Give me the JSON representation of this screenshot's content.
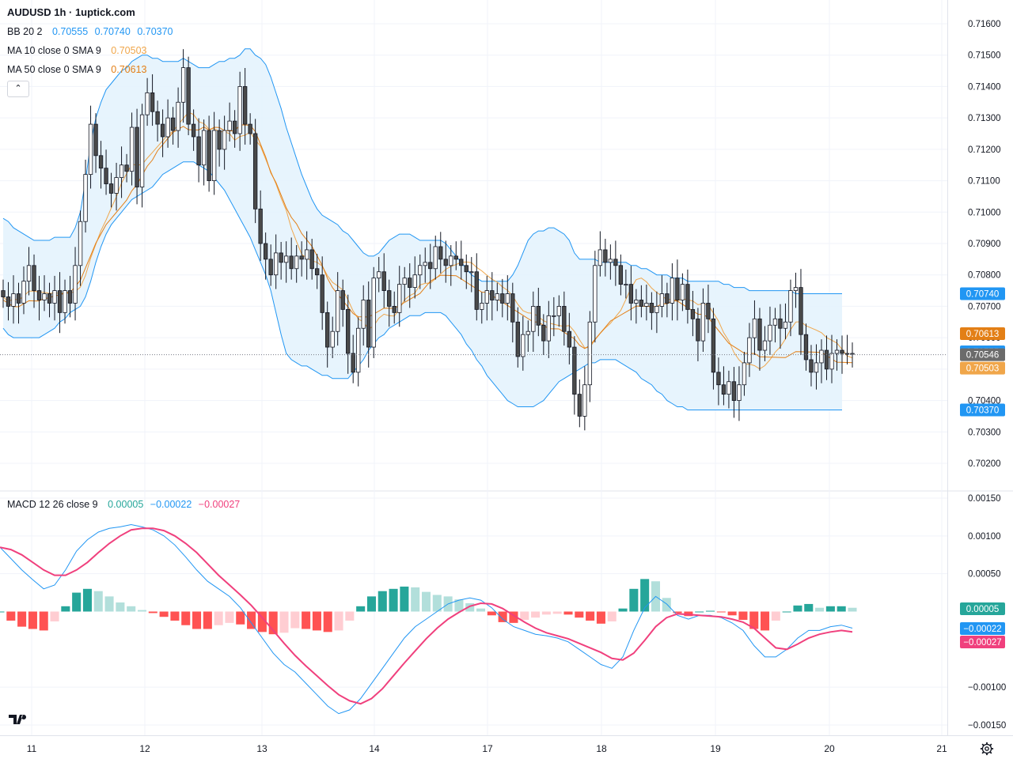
{
  "header": {
    "symbol_title": "AUDUSD 1h · 1uptick.com",
    "collapse_icon": "chevron-up-icon"
  },
  "legend": {
    "bb": {
      "label": "BB 20 2",
      "values": [
        "0.70555",
        "0.70740",
        "0.70370"
      ]
    },
    "ma10": {
      "label": "MA 10 close 0 SMA 9",
      "value": "0.70503",
      "color": "#f0a64a"
    },
    "ma50": {
      "label": "MA 50 close 0 SMA 9",
      "value": "0.70613",
      "color": "#e37f16"
    },
    "macd": {
      "label": "MACD 12 26 close 9",
      "values": [
        "0.00005",
        "−0.00022",
        "−0.00027"
      ]
    }
  },
  "colors": {
    "bull": "#ffffff",
    "bear": "#4a4a4a",
    "wick": "#131722",
    "bb_line": "#2196f3",
    "bb_fill": "#e3f2fd",
    "macd_line": "#2196f3",
    "signal_line": "#f0407d",
    "hist_pos_strong": "#26a69a",
    "hist_pos_weak": "#b2dfdb",
    "hist_neg_strong": "#ff5252",
    "hist_neg_weak": "#ffcdd2"
  },
  "chart_data": [
    {
      "type": "candlestick",
      "title": "AUDUSD 1h",
      "y_ticks": [
        "0.71600",
        "0.71500",
        "0.71400",
        "0.71300",
        "0.71200",
        "0.71100",
        "0.71000",
        "0.70900",
        "0.70800",
        "0.70700",
        "0.70600",
        "0.70500",
        "0.70400",
        "0.70300",
        "0.70200"
      ],
      "ylim": [
        0.7014,
        0.716
      ],
      "x_labels": [
        "11",
        "12",
        "13",
        "14",
        "17",
        "18",
        "19",
        "20",
        "21"
      ],
      "last_price": "0.70546",
      "price_badges": [
        {
          "value": "0.70740",
          "price": 0.7074,
          "color": "#2196f3"
        },
        {
          "value": "0.70613",
          "price": 0.70613,
          "color": "#e37f16"
        },
        {
          "value": "0.70555",
          "price": 0.70555,
          "color": "#2196f3"
        },
        {
          "value": "0.70546",
          "price": 0.70546,
          "color": "#6b6b6b"
        },
        {
          "value": "0.70503",
          "price": 0.70503,
          "color": "#f0a64a"
        },
        {
          "value": "0.70370",
          "price": 0.7037,
          "color": "#2196f3"
        }
      ],
      "closes": [
        0.7073,
        0.707,
        0.7074,
        0.7071,
        0.7078,
        0.7083,
        0.7075,
        0.7072,
        0.7074,
        0.7071,
        0.7075,
        0.7068,
        0.7075,
        0.7071,
        0.7083,
        0.7097,
        0.7112,
        0.7128,
        0.7118,
        0.7114,
        0.7109,
        0.7106,
        0.7111,
        0.7115,
        0.7113,
        0.7127,
        0.7108,
        0.7131,
        0.7138,
        0.7132,
        0.7128,
        0.7124,
        0.713,
        0.7126,
        0.7135,
        0.7146,
        0.7128,
        0.7124,
        0.7115,
        0.7126,
        0.711,
        0.7126,
        0.712,
        0.7126,
        0.7129,
        0.7125,
        0.714,
        0.7128,
        0.7125,
        0.7101,
        0.709,
        0.7085,
        0.708,
        0.7087,
        0.7084,
        0.7086,
        0.7082,
        0.7086,
        0.7085,
        0.7088,
        0.7082,
        0.708,
        0.7068,
        0.7057,
        0.7062,
        0.7075,
        0.7069,
        0.7055,
        0.7049,
        0.7063,
        0.7072,
        0.7057,
        0.7079,
        0.7081,
        0.7075,
        0.707,
        0.7068,
        0.7077,
        0.7079,
        0.7076,
        0.708,
        0.7083,
        0.7084,
        0.7082,
        0.7089,
        0.7085,
        0.7083,
        0.7086,
        0.7085,
        0.7083,
        0.7081,
        0.7081,
        0.7069,
        0.7071,
        0.7075,
        0.7072,
        0.7074,
        0.7071,
        0.7074,
        0.7065,
        0.7054,
        0.7061,
        0.7062,
        0.707,
        0.7064,
        0.7059,
        0.7067,
        0.7067,
        0.707,
        0.7062,
        0.7057,
        0.7042,
        0.7035,
        0.7045,
        0.7065,
        0.7083,
        0.7088,
        0.7084,
        0.7085,
        0.7083,
        0.7077,
        0.7077,
        0.7071,
        0.7072,
        0.707,
        0.7071,
        0.7068,
        0.707,
        0.7074,
        0.7071,
        0.7079,
        0.7072,
        0.7077,
        0.7069,
        0.7066,
        0.7059,
        0.7071,
        0.7066,
        0.7049,
        0.7045,
        0.7042,
        0.7046,
        0.704,
        0.7045,
        0.7052,
        0.706,
        0.7066,
        0.7056,
        0.7059,
        0.7064,
        0.7066,
        0.7063,
        0.7065,
        0.7075,
        0.7076,
        0.7061,
        0.7053,
        0.7049,
        0.7052,
        0.7056,
        0.705,
        0.7055,
        0.7056,
        0.7055,
        0.7055,
        0.7055
      ],
      "bb_basis": [
        0.7068,
        0.7067,
        0.7066,
        0.7066,
        0.7067,
        0.7068,
        0.7068,
        0.7068,
        0.7069,
        0.7069,
        0.707,
        0.707,
        0.7071,
        0.7071,
        0.7073,
        0.7075,
        0.7079,
        0.7083,
        0.7087,
        0.709,
        0.7093,
        0.7095,
        0.7097,
        0.7099,
        0.7101,
        0.7104,
        0.7106,
        0.7109,
        0.7112,
        0.7114,
        0.7117,
        0.7119,
        0.7121,
        0.7123,
        0.7124,
        0.7125,
        0.7124,
        0.7124,
        0.7124,
        0.7125,
        0.7124,
        0.7125,
        0.7125,
        0.7124,
        0.7124,
        0.7124,
        0.7126,
        0.7126,
        0.7126,
        0.7124,
        0.712,
        0.7116,
        0.7111,
        0.7108,
        0.7104,
        0.71,
        0.7097,
        0.7095,
        0.7092,
        0.709,
        0.7088,
        0.7085,
        0.7082,
        0.7078,
        0.7075,
        0.7073,
        0.7071,
        0.7069,
        0.7067,
        0.7066,
        0.7066,
        0.7066,
        0.7067,
        0.7068,
        0.7069,
        0.7069,
        0.7069,
        0.707,
        0.7071,
        0.7072,
        0.7073,
        0.7074,
        0.7076,
        0.7078,
        0.7079,
        0.708,
        0.708,
        0.708,
        0.708,
        0.7079,
        0.7078,
        0.7077,
        0.7076,
        0.7075,
        0.7075,
        0.7074,
        0.7073,
        0.7072,
        0.7071,
        0.707,
        0.7069,
        0.7068,
        0.7067,
        0.7066,
        0.7066,
        0.7065,
        0.7064,
        0.7064,
        0.7064,
        0.7063,
        0.7062,
        0.7061,
        0.7059,
        0.7058,
        0.7059,
        0.7061,
        0.7063,
        0.7065,
        0.7067,
        0.7068,
        0.7069,
        0.707,
        0.7071,
        0.7072,
        0.7072,
        0.7072,
        0.7072,
        0.7072,
        0.7073,
        0.7073,
        0.7074,
        0.7074,
        0.7073,
        0.7072,
        0.7071,
        0.707,
        0.707,
        0.7069,
        0.7067,
        0.7065,
        0.7063,
        0.7061,
        0.706,
        0.7059,
        0.7058,
        0.7058,
        0.7058,
        0.7057,
        0.7057,
        0.7057,
        0.7057,
        0.7057,
        0.7057,
        0.7058,
        0.7059,
        0.7059,
        0.7059,
        0.7059,
        0.7059,
        0.7059,
        0.7058,
        0.7057,
        0.7056,
        0.7056,
        0.7056,
        0.7056
      ],
      "bb_upper": [
        0.7098,
        0.7097,
        0.7095,
        0.7094,
        0.7093,
        0.7092,
        0.7091,
        0.7091,
        0.7091,
        0.7091,
        0.7092,
        0.7092,
        0.7092,
        0.7092,
        0.7095,
        0.71,
        0.711,
        0.7122,
        0.713,
        0.7135,
        0.7139,
        0.7141,
        0.7143,
        0.7145,
        0.7146,
        0.7148,
        0.7149,
        0.715,
        0.715,
        0.7149,
        0.7149,
        0.7148,
        0.7148,
        0.7148,
        0.7148,
        0.7149,
        0.7148,
        0.7147,
        0.7146,
        0.7146,
        0.7146,
        0.7147,
        0.7148,
        0.7148,
        0.7149,
        0.7149,
        0.715,
        0.7152,
        0.7152,
        0.715,
        0.7149,
        0.7147,
        0.7143,
        0.7138,
        0.7133,
        0.7127,
        0.7122,
        0.7117,
        0.7112,
        0.7108,
        0.7104,
        0.7101,
        0.7099,
        0.7098,
        0.7097,
        0.7096,
        0.7094,
        0.7093,
        0.7091,
        0.7089,
        0.7087,
        0.7086,
        0.7086,
        0.7087,
        0.7089,
        0.7091,
        0.7092,
        0.7093,
        0.7093,
        0.7093,
        0.7092,
        0.7091,
        0.7091,
        0.7091,
        0.7091,
        0.7091,
        0.709,
        0.7088,
        0.7086,
        0.7084,
        0.7082,
        0.708,
        0.7079,
        0.7078,
        0.7078,
        0.7078,
        0.7078,
        0.7078,
        0.7078,
        0.708,
        0.7083,
        0.7087,
        0.7091,
        0.7093,
        0.7094,
        0.7094,
        0.7095,
        0.7095,
        0.7094,
        0.7093,
        0.7091,
        0.7087,
        0.7085,
        0.7085,
        0.7085,
        0.7085,
        0.7084,
        0.7084,
        0.7084,
        0.7084,
        0.7084,
        0.7084,
        0.7083,
        0.7083,
        0.7082,
        0.7082,
        0.7081,
        0.708,
        0.708,
        0.708,
        0.7079,
        0.7079,
        0.7079,
        0.7078,
        0.7078,
        0.7078,
        0.7078,
        0.7078,
        0.7078,
        0.7078,
        0.7077,
        0.7077,
        0.7076,
        0.7076,
        0.7076,
        0.7075,
        0.7075,
        0.7075,
        0.7075,
        0.7075,
        0.7075,
        0.7075,
        0.7075,
        0.7075,
        0.7074,
        0.7074,
        0.7074,
        0.7074,
        0.7074,
        0.7074,
        0.7074,
        0.7074,
        0.7074,
        0.7074
      ],
      "bb_lower": [
        0.7063,
        0.7061,
        0.706,
        0.706,
        0.706,
        0.706,
        0.706,
        0.706,
        0.7061,
        0.7062,
        0.7063,
        0.7065,
        0.7066,
        0.7068,
        0.7069,
        0.707,
        0.7073,
        0.7078,
        0.7084,
        0.7089,
        0.7093,
        0.7096,
        0.7098,
        0.71,
        0.7102,
        0.7104,
        0.7105,
        0.7106,
        0.7107,
        0.7108,
        0.711,
        0.7112,
        0.7113,
        0.7114,
        0.7115,
        0.7116,
        0.7116,
        0.7116,
        0.7115,
        0.7114,
        0.7113,
        0.7111,
        0.7109,
        0.7107,
        0.7104,
        0.7101,
        0.7098,
        0.7095,
        0.7092,
        0.7088,
        0.7084,
        0.708,
        0.7075,
        0.7068,
        0.7061,
        0.7055,
        0.7053,
        0.7052,
        0.7051,
        0.7051,
        0.705,
        0.7049,
        0.7048,
        0.7048,
        0.7047,
        0.7047,
        0.7047,
        0.7047,
        0.7049,
        0.7051,
        0.7053,
        0.7056,
        0.7058,
        0.706,
        0.7061,
        0.7063,
        0.7064,
        0.7065,
        0.7066,
        0.7067,
        0.7067,
        0.7067,
        0.7068,
        0.7068,
        0.7068,
        0.7068,
        0.7067,
        0.7065,
        0.7063,
        0.7061,
        0.7058,
        0.7056,
        0.7053,
        0.7051,
        0.7048,
        0.7046,
        0.7044,
        0.7042,
        0.704,
        0.7039,
        0.7038,
        0.7038,
        0.7038,
        0.7038,
        0.7039,
        0.704,
        0.7042,
        0.7044,
        0.7046,
        0.7047,
        0.7048,
        0.7049,
        0.705,
        0.7051,
        0.7052,
        0.7052,
        0.7053,
        0.7053,
        0.7053,
        0.7053,
        0.7052,
        0.7051,
        0.705,
        0.7049,
        0.7047,
        0.7046,
        0.7045,
        0.7043,
        0.7042,
        0.704,
        0.7039,
        0.7038,
        0.7038,
        0.7037,
        0.7037,
        0.7037,
        0.7037,
        0.7037,
        0.7037,
        0.7037,
        0.7037,
        0.7037,
        0.7037,
        0.7037,
        0.7037,
        0.7037,
        0.7037,
        0.7037,
        0.7037,
        0.7037,
        0.7037,
        0.7037,
        0.7037,
        0.7037,
        0.7037,
        0.7037,
        0.7037,
        0.7037,
        0.7037,
        0.7037,
        0.7037,
        0.7037,
        0.7037,
        0.7037
      ]
    },
    {
      "type": "macd",
      "title": "MACD 12 26 close 9",
      "y_ticks": [
        "0.00150",
        "0.00100",
        "0.00050",
        "−0.00100",
        "−0.00150"
      ],
      "ylim": [
        -0.00155,
        0.00155
      ],
      "last_values": {
        "histogram": "0.00005",
        "macd": "−0.00022",
        "signal": "−0.00027"
      },
      "macd": [
        0.00085,
        0.0007,
        0.00055,
        0.00042,
        0.0003,
        0.00035,
        0.00055,
        0.0008,
        0.00095,
        0.00105,
        0.0011,
        0.00112,
        0.00115,
        0.00112,
        0.00108,
        0.001,
        0.00088,
        0.00072,
        0.00055,
        0.0004,
        0.0003,
        0.0002,
        5e-05,
        -0.00015,
        -0.00035,
        -0.00055,
        -0.0007,
        -0.0008,
        -0.00095,
        -0.0011,
        -0.00125,
        -0.00135,
        -0.0013,
        -0.00115,
        -0.00095,
        -0.00075,
        -0.00055,
        -0.00035,
        -0.0002,
        -0.0001,
        0.0,
        0.0001,
        0.00015,
        0.00018,
        0.00015,
        5e-05,
        -0.0001,
        -0.0002,
        -0.00025,
        -0.0003,
        -0.00032,
        -0.00035,
        -0.0004,
        -0.0005,
        -0.0006,
        -0.0007,
        -0.00075,
        -0.0006,
        -0.00025,
        5e-05,
        0.0002,
        0.0001,
        -5e-05,
        -0.0001,
        -5e-05,
        -5e-05,
        -8e-05,
        -0.00015,
        -0.00025,
        -0.00045,
        -0.0006,
        -0.0006,
        -0.0005,
        -0.00035,
        -0.00025,
        -0.00025,
        -0.0002,
        -0.00018,
        -0.00022
      ],
      "signal": [
        0.00085,
        0.00082,
        0.00075,
        0.00065,
        0.00055,
        0.00048,
        0.00048,
        0.00055,
        0.00065,
        0.00078,
        0.0009,
        0.001,
        0.00108,
        0.0011,
        0.0011,
        0.00107,
        0.001,
        0.0009,
        0.00078,
        0.00063,
        0.00048,
        0.00035,
        0.00022,
        8e-05,
        -8e-05,
        -0.00025,
        -0.00042,
        -0.00058,
        -0.00072,
        -0.00085,
        -0.00098,
        -0.0011,
        -0.00118,
        -0.00122,
        -0.00115,
        -0.00102,
        -0.00085,
        -0.00068,
        -0.00052,
        -0.00036,
        -0.00022,
        -0.0001,
        -1e-05,
        7e-05,
        0.00011,
        0.0001,
        4e-05,
        -5e-05,
        -0.00014,
        -0.00022,
        -0.00028,
        -0.00032,
        -0.00036,
        -0.00042,
        -0.00048,
        -0.00054,
        -0.00062,
        -0.00064,
        -0.00055,
        -0.00038,
        -0.0002,
        -8e-05,
        -3e-05,
        -4e-05,
        -5e-05,
        -6e-05,
        -7e-05,
        -0.0001,
        -0.00014,
        -0.00022,
        -0.00035,
        -0.00048,
        -0.0005,
        -0.00043,
        -0.00035,
        -0.0003,
        -0.00027,
        -0.00025,
        -0.00027
      ]
    }
  ]
}
